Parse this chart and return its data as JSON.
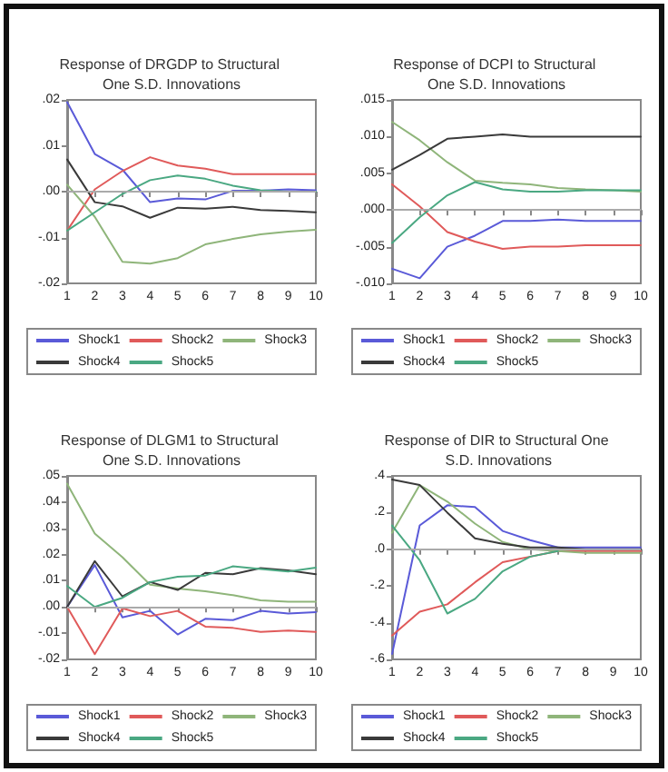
{
  "chart_data": [
    {
      "type": "line",
      "title": "Response of DRGDP to Structural One S.D. Innovations",
      "x": [
        1,
        2,
        3,
        4,
        5,
        6,
        7,
        8,
        9,
        10
      ],
      "xlim": [
        1,
        10
      ],
      "xticks": [
        1,
        2,
        3,
        4,
        5,
        6,
        7,
        8,
        9,
        10
      ],
      "ylim": [
        -0.02,
        0.02
      ],
      "yticks": [
        {
          "value": -0.02,
          "label": "-.02"
        },
        {
          "value": -0.01,
          "label": "-.01"
        },
        {
          "value": 0,
          "label": ".00"
        },
        {
          "value": 0.01,
          "label": ".01"
        },
        {
          "value": 0.02,
          "label": ".02"
        }
      ],
      "grid": false,
      "legend": "bottom",
      "marker": "none",
      "ref_lines": [
        {
          "axis": "y",
          "value": 0,
          "color": "#aaaaaa"
        }
      ],
      "series": [
        {
          "name": "Shock1",
          "color": "#5a5ad8",
          "values": [
            0.0195,
            0.0082,
            0.0048,
            -0.0023,
            -0.0015,
            -0.0017,
            0.0002,
            0.0002,
            0.0005,
            0.0003
          ]
        },
        {
          "name": "Shock2",
          "color": "#e05a5a",
          "values": [
            -0.0085,
            0.0005,
            0.0045,
            0.0075,
            0.0057,
            0.005,
            0.0038,
            0.0038,
            0.0038,
            0.0038
          ]
        },
        {
          "name": "Shock3",
          "color": "#8fb57a",
          "values": [
            0.0015,
            -0.0055,
            -0.0153,
            -0.0157,
            -0.0145,
            -0.0115,
            -0.0103,
            -0.0093,
            -0.0087,
            -0.0083
          ]
        },
        {
          "name": "Shock4",
          "color": "#3a3a3a",
          "values": [
            0.007,
            -0.0023,
            -0.0032,
            -0.0057,
            -0.0035,
            -0.0037,
            -0.0033,
            -0.004,
            -0.0042,
            -0.0045
          ]
        },
        {
          "name": "Shock5",
          "color": "#4aa882",
          "values": [
            -0.0085,
            -0.0045,
            -0.0005,
            0.0025,
            0.0035,
            0.0028,
            0.0013,
            0.0003,
            0,
            0
          ]
        }
      ]
    },
    {
      "type": "line",
      "title": "Response of DCPI to Structural One S.D. Innovations",
      "x": [
        1,
        2,
        3,
        4,
        5,
        6,
        7,
        8,
        9,
        10
      ],
      "xlim": [
        1,
        10
      ],
      "xticks": [
        1,
        2,
        3,
        4,
        5,
        6,
        7,
        8,
        9,
        10
      ],
      "ylim": [
        -0.01,
        0.015
      ],
      "yticks": [
        {
          "value": -0.01,
          "label": "-.010"
        },
        {
          "value": -0.005,
          "label": "-.005"
        },
        {
          "value": 0,
          "label": ".000"
        },
        {
          "value": 0.005,
          "label": ".005"
        },
        {
          "value": 0.01,
          "label": ".010"
        },
        {
          "value": 0.015,
          "label": ".015"
        }
      ],
      "grid": false,
      "legend": "bottom",
      "marker": "none",
      "ref_lines": [
        {
          "axis": "y",
          "value": 0,
          "color": "#aaaaaa"
        }
      ],
      "series": [
        {
          "name": "Shock1",
          "color": "#5a5ad8",
          "values": [
            -0.008,
            -0.0093,
            -0.005,
            -0.0035,
            -0.0015,
            -0.0015,
            -0.0013,
            -0.0015,
            -0.0015,
            -0.0015
          ]
        },
        {
          "name": "Shock2",
          "color": "#e05a5a",
          "values": [
            0.0035,
            0.0005,
            -0.003,
            -0.0043,
            -0.0053,
            -0.005,
            -0.005,
            -0.0048,
            -0.0048,
            -0.0048
          ]
        },
        {
          "name": "Shock3",
          "color": "#8fb57a",
          "values": [
            0.012,
            0.0095,
            0.0065,
            0.004,
            0.0037,
            0.0035,
            0.003,
            0.0028,
            0.0027,
            0.0025
          ]
        },
        {
          "name": "Shock4",
          "color": "#3a3a3a",
          "values": [
            0.0055,
            0.0075,
            0.0097,
            0.01,
            0.0103,
            0.01,
            0.01,
            0.01,
            0.01,
            0.01
          ]
        },
        {
          "name": "Shock5",
          "color": "#4aa882",
          "values": [
            -0.0045,
            -0.001,
            0.002,
            0.0038,
            0.0028,
            0.0025,
            0.0025,
            0.0027,
            0.0027,
            0.0027
          ]
        }
      ]
    },
    {
      "type": "line",
      "title": "Response of DLGM1 to Structural One S.D. Innovations",
      "x": [
        1,
        2,
        3,
        4,
        5,
        6,
        7,
        8,
        9,
        10
      ],
      "xlim": [
        1,
        10
      ],
      "xticks": [
        1,
        2,
        3,
        4,
        5,
        6,
        7,
        8,
        9,
        10
      ],
      "ylim": [
        -0.02,
        0.05
      ],
      "yticks": [
        {
          "value": -0.02,
          "label": "-.02"
        },
        {
          "value": -0.01,
          "label": "-.01"
        },
        {
          "value": 0,
          "label": ".00"
        },
        {
          "value": 0.01,
          "label": ".01"
        },
        {
          "value": 0.02,
          "label": ".02"
        },
        {
          "value": 0.03,
          "label": ".03"
        },
        {
          "value": 0.04,
          "label": ".04"
        },
        {
          "value": 0.05,
          "label": ".05"
        }
      ],
      "grid": false,
      "legend": "bottom",
      "marker": "none",
      "ref_lines": [
        {
          "axis": "y",
          "value": 0,
          "color": "#aaaaaa"
        }
      ],
      "series": [
        {
          "name": "Shock1",
          "color": "#5a5ad8",
          "values": [
            0,
            0.016,
            -0.004,
            -0.0015,
            -0.0105,
            -0.0045,
            -0.005,
            -0.0015,
            -0.0025,
            -0.002
          ]
        },
        {
          "name": "Shock2",
          "color": "#e05a5a",
          "values": [
            0,
            -0.018,
            -0.0005,
            -0.0035,
            -0.0015,
            -0.0075,
            -0.008,
            -0.0095,
            -0.009,
            -0.0095
          ]
        },
        {
          "name": "Shock3",
          "color": "#8fb57a",
          "values": [
            0.047,
            0.028,
            0.019,
            0.0085,
            0.007,
            0.006,
            0.0045,
            0.0025,
            0.002,
            0.002
          ]
        },
        {
          "name": "Shock4",
          "color": "#3a3a3a",
          "values": [
            0,
            0.0175,
            0.004,
            0.0095,
            0.0065,
            0.013,
            0.0125,
            0.0148,
            0.014,
            0.0125
          ]
        },
        {
          "name": "Shock5",
          "color": "#4aa882",
          "values": [
            0.008,
            0,
            0.0035,
            0.0095,
            0.0115,
            0.012,
            0.0155,
            0.0145,
            0.0135,
            0.015
          ]
        }
      ]
    },
    {
      "type": "line",
      "title": "Response of DIR to Structural One S.D. Innovations",
      "x": [
        1,
        2,
        3,
        4,
        5,
        6,
        7,
        8,
        9,
        10
      ],
      "xlim": [
        1,
        10
      ],
      "xticks": [
        1,
        2,
        3,
        4,
        5,
        6,
        7,
        8,
        9,
        10
      ],
      "ylim": [
        -0.6,
        0.4
      ],
      "yticks": [
        {
          "value": -0.6,
          "label": "-.6"
        },
        {
          "value": -0.4,
          "label": "-.4"
        },
        {
          "value": -0.2,
          "label": "-.2"
        },
        {
          "value": 0,
          "label": ".0"
        },
        {
          "value": 0.2,
          "label": ".2"
        },
        {
          "value": 0.4,
          "label": ".4"
        }
      ],
      "grid": false,
      "legend": "bottom",
      "marker": "none",
      "ref_lines": [
        {
          "axis": "y",
          "value": 0,
          "color": "#aaaaaa"
        }
      ],
      "series": [
        {
          "name": "Shock1",
          "color": "#5a5ad8",
          "values": [
            -0.57,
            0.13,
            0.24,
            0.23,
            0.1,
            0.05,
            0.01,
            0.01,
            0.01,
            0.01
          ]
        },
        {
          "name": "Shock2",
          "color": "#e05a5a",
          "values": [
            -0.47,
            -0.34,
            -0.3,
            -0.18,
            -0.07,
            -0.04,
            -0.01,
            -0.01,
            -0.01,
            -0.01
          ]
        },
        {
          "name": "Shock3",
          "color": "#8fb57a",
          "values": [
            0.09,
            0.35,
            0.26,
            0.14,
            0.04,
            0,
            -0.01,
            -0.02,
            -0.02,
            -0.02
          ]
        },
        {
          "name": "Shock4",
          "color": "#3a3a3a",
          "values": [
            0.38,
            0.35,
            0.2,
            0.06,
            0.03,
            0.01,
            0.01,
            0,
            0,
            0
          ]
        },
        {
          "name": "Shock5",
          "color": "#4aa882",
          "values": [
            0.13,
            -0.06,
            -0.35,
            -0.27,
            -0.12,
            -0.04,
            -0.01,
            null,
            null,
            null
          ]
        }
      ]
    }
  ]
}
